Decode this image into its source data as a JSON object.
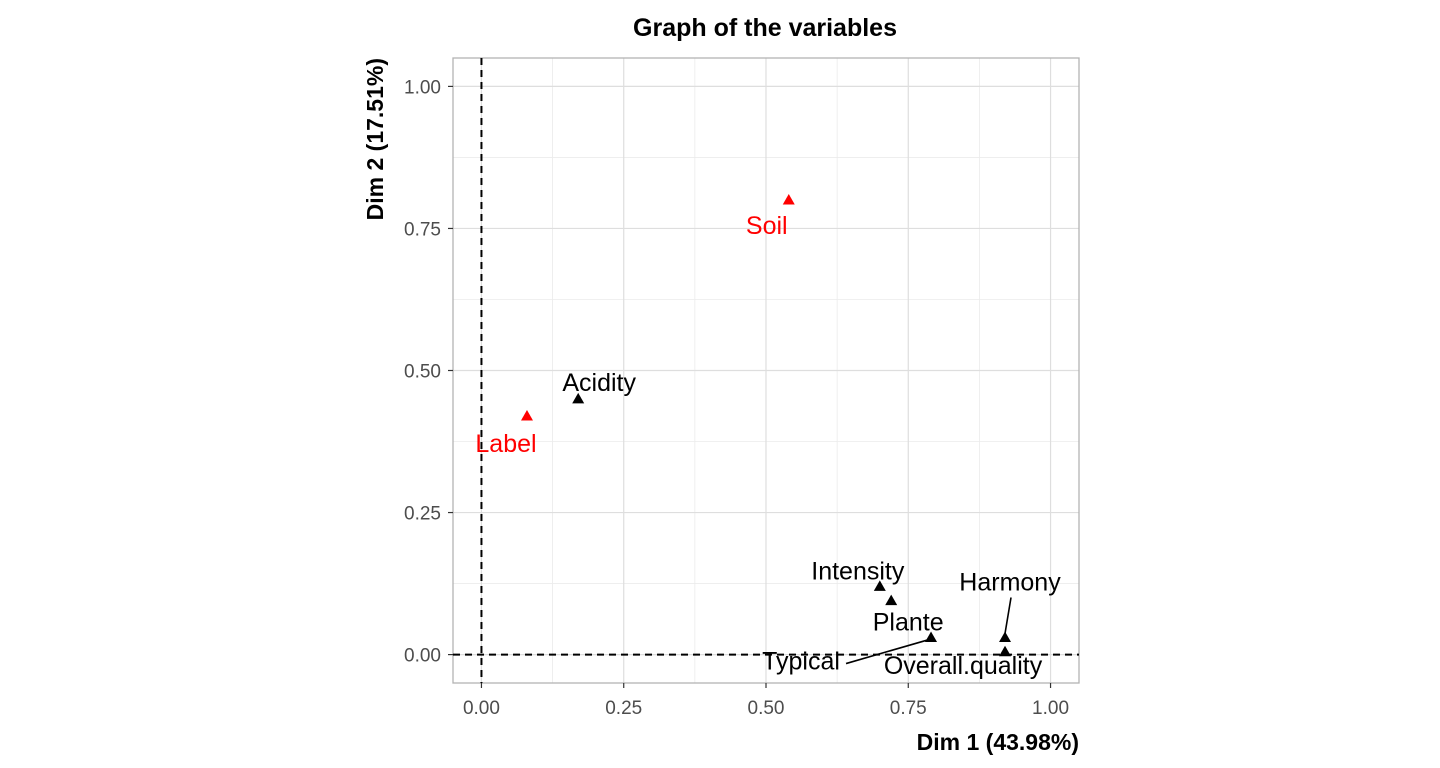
{
  "chart_data": {
    "type": "scatter",
    "title": "Graph of the variables",
    "xlabel": "Dim 1 (43.98%)",
    "ylabel": "Dim 2 (17.51%)",
    "xlim": [
      -0.05,
      1.05
    ],
    "ylim": [
      -0.05,
      1.05
    ],
    "x_ticks": [
      0.0,
      0.25,
      0.5,
      0.75,
      1.0
    ],
    "x_tick_labels": [
      "0.00",
      "0.25",
      "0.50",
      "0.75",
      "1.00"
    ],
    "y_ticks": [
      0.0,
      0.25,
      0.5,
      0.75,
      1.0
    ],
    "y_tick_labels": [
      "0.00",
      "0.25",
      "0.50",
      "0.75",
      "1.00"
    ],
    "grid": true,
    "reference_lines": {
      "x": 0,
      "y": 0,
      "style": "dashed"
    },
    "points": [
      {
        "label": "Soil",
        "x": 0.54,
        "y": 0.8,
        "color": "#ff0000"
      },
      {
        "label": "Label",
        "x": 0.08,
        "y": 0.42,
        "color": "#ff0000"
      },
      {
        "label": "Acidity",
        "x": 0.17,
        "y": 0.45,
        "color": "#000000"
      },
      {
        "label": "Intensity",
        "x": 0.7,
        "y": 0.12,
        "color": "#000000"
      },
      {
        "label": "Plante",
        "x": 0.72,
        "y": 0.095,
        "color": "#000000"
      },
      {
        "label": "Typical",
        "x": 0.79,
        "y": 0.03,
        "color": "#000000"
      },
      {
        "label": "Harmony",
        "x": 0.92,
        "y": 0.03,
        "color": "#000000"
      },
      {
        "label": "Overall.quality",
        "x": 0.92,
        "y": 0.005,
        "color": "#000000"
      }
    ],
    "colors": {
      "supplementary": "#ff0000",
      "active": "#000000",
      "grid": "#dedede",
      "panel_border": "#b3b3b3"
    }
  }
}
